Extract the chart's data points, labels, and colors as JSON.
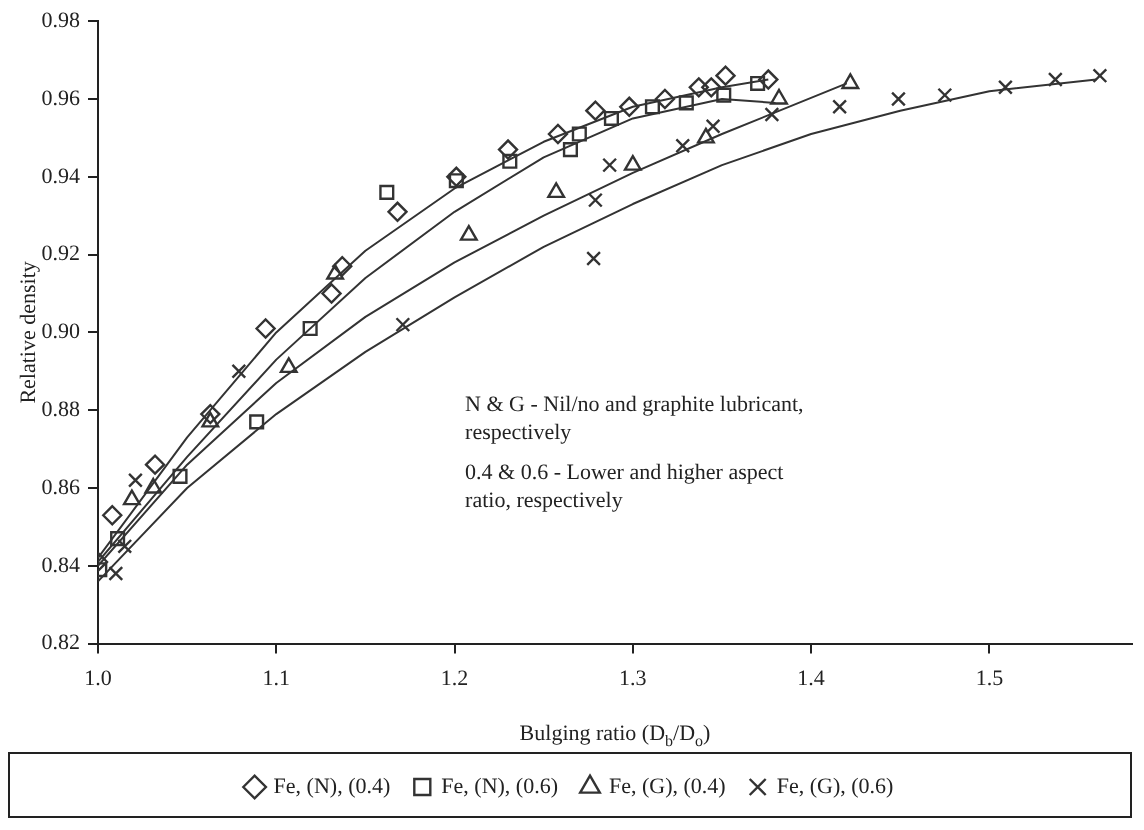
{
  "chart_data": {
    "type": "scatter",
    "xlabel": "Bulging ratio (D$_{b}$/D$_{o}$)",
    "ylabel": "Relative density",
    "xlim": [
      1.0,
      1.58
    ],
    "xticks": [
      {
        "value": 1.0,
        "label": "1.0"
      },
      1.1,
      1.2,
      1.3,
      1.4,
      1.5
    ],
    "ylim": [
      0.82,
      0.98
    ],
    "yticks": [
      0.82,
      0.84,
      0.86,
      0.88,
      {
        "value": 0.9,
        "label": "0.90"
      },
      0.92,
      0.94,
      0.96,
      0.98
    ],
    "grid": false,
    "legend": "bottom",
    "annotations": [
      "N & G - Nil/no and graphite lubricant, respectively",
      "0.4 & 0.6 - Lower and higher aspect ratio, respectively"
    ],
    "series": [
      {
        "name": "Fe, (N), (0.4)",
        "marker": "diamond",
        "color": "#333333",
        "x": [
          1.0,
          1.008,
          1.032,
          1.063,
          1.094,
          1.131,
          1.137,
          1.168,
          1.201,
          1.23,
          1.258,
          1.279,
          1.298,
          1.318,
          1.337,
          1.344,
          1.352,
          1.376
        ],
        "values": [
          0.841,
          0.853,
          0.866,
          0.879,
          0.901,
          0.91,
          0.917,
          0.931,
          0.94,
          0.947,
          0.951,
          0.957,
          0.958,
          0.96,
          0.963,
          0.963,
          0.966,
          0.965
        ]
      },
      {
        "name": "Fe, (N), (0.6)",
        "marker": "square",
        "color": "#333333",
        "x": [
          1.001,
          1.011,
          1.046,
          1.089,
          1.119,
          1.162,
          1.201,
          1.231,
          1.265,
          1.27,
          1.288,
          1.311,
          1.33,
          1.351,
          1.37
        ],
        "values": [
          0.839,
          0.847,
          0.863,
          0.877,
          0.901,
          0.936,
          0.939,
          0.944,
          0.947,
          0.951,
          0.955,
          0.958,
          0.959,
          0.961,
          0.964
        ]
      },
      {
        "name": "Fe, (G), (0.4)",
        "marker": "triangle",
        "color": "#333333",
        "x": [
          1.019,
          1.031,
          1.063,
          1.107,
          1.133,
          1.208,
          1.257,
          1.3,
          1.341,
          1.382,
          1.422
        ],
        "values": [
          0.857,
          0.86,
          0.877,
          0.891,
          0.915,
          0.925,
          0.936,
          0.943,
          0.95,
          0.96,
          0.964
        ]
      },
      {
        "name": "Fe, (G), (0.6)",
        "marker": "cross",
        "color": "#333333",
        "x": [
          1.01,
          1.015,
          1.021,
          1.079,
          1.171,
          1.278,
          1.279,
          1.287,
          1.328,
          1.345,
          1.378,
          1.416,
          1.449,
          1.475,
          1.509,
          1.537,
          1.562
        ],
        "values": [
          0.838,
          0.845,
          0.862,
          0.89,
          0.902,
          0.919,
          0.934,
          0.943,
          0.948,
          0.953,
          0.956,
          0.958,
          0.96,
          0.961,
          0.963,
          0.965,
          0.966
        ]
      },
      {
        "type": "line",
        "marker": "none",
        "color": "#333333",
        "x": [
          1.0,
          1.05,
          1.1,
          1.15,
          1.2,
          1.25,
          1.3,
          1.35,
          1.376
        ],
        "values": [
          0.842,
          0.873,
          0.9,
          0.921,
          0.937,
          0.949,
          0.958,
          0.963,
          0.965
        ]
      },
      {
        "type": "line",
        "marker": "none",
        "color": "#333333",
        "x": [
          1.0,
          1.05,
          1.1,
          1.15,
          1.2,
          1.25,
          1.3,
          1.35,
          1.38
        ],
        "values": [
          0.841,
          0.868,
          0.893,
          0.914,
          0.931,
          0.945,
          0.955,
          0.96,
          0.959
        ]
      },
      {
        "type": "line",
        "marker": "none",
        "color": "#333333",
        "x": [
          1.0,
          1.05,
          1.1,
          1.15,
          1.2,
          1.25,
          1.3,
          1.35,
          1.42
        ],
        "values": [
          0.84,
          0.866,
          0.887,
          0.904,
          0.918,
          0.93,
          0.941,
          0.951,
          0.964
        ]
      },
      {
        "type": "line",
        "marker": "none",
        "color": "#333333",
        "x": [
          1.0,
          1.05,
          1.1,
          1.15,
          1.2,
          1.25,
          1.3,
          1.35,
          1.4,
          1.45,
          1.5,
          1.56
        ],
        "values": [
          0.836,
          0.86,
          0.879,
          0.895,
          0.909,
          0.922,
          0.933,
          0.943,
          0.951,
          0.957,
          0.962,
          0.965
        ]
      }
    ]
  }
}
